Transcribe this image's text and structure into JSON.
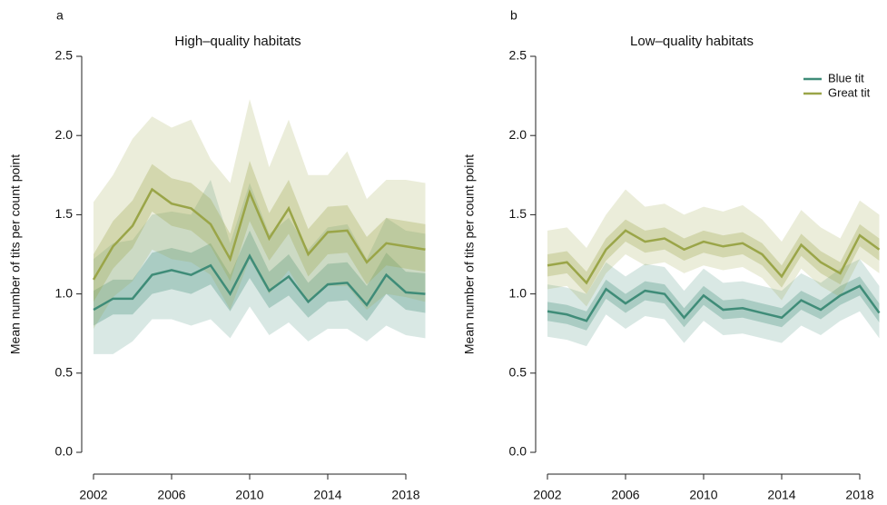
{
  "chart_data": [
    {
      "type": "line",
      "panel_label": "a",
      "title": "High–quality habitats",
      "ylabel": "Mean number of tits per count point",
      "x": [
        2002,
        2003,
        2004,
        2005,
        2006,
        2007,
        2008,
        2009,
        2010,
        2011,
        2012,
        2013,
        2014,
        2015,
        2016,
        2017,
        2018,
        2019
      ],
      "xlim": [
        2002,
        2019
      ],
      "xticks": [
        2002,
        2006,
        2010,
        2014,
        2018
      ],
      "ylim": [
        0,
        2.5
      ],
      "yticks": [
        {
          "value": 0,
          "label": "0.0"
        },
        0.5,
        {
          "value": 1,
          "label": "1.0"
        },
        1.5,
        {
          "value": 2,
          "label": "2.0"
        },
        2.5
      ],
      "legend": false,
      "series": [
        {
          "name": "Blue tit",
          "color": "#3f8c78",
          "values": [
            0.9,
            0.97,
            0.97,
            1.12,
            1.15,
            1.12,
            1.18,
            1.0,
            1.24,
            1.02,
            1.11,
            0.95,
            1.06,
            1.07,
            0.93,
            1.12,
            1.01,
            1.0
          ],
          "inner_low": [
            0.8,
            0.87,
            0.87,
            1.0,
            1.03,
            1.0,
            1.06,
            0.89,
            1.1,
            0.91,
            0.99,
            0.85,
            0.95,
            0.96,
            0.83,
            1.0,
            0.9,
            0.88
          ],
          "inner_high": [
            1.02,
            1.09,
            1.09,
            1.26,
            1.29,
            1.26,
            1.32,
            1.12,
            1.4,
            1.14,
            1.25,
            1.07,
            1.19,
            1.2,
            1.05,
            1.26,
            1.14,
            1.13
          ],
          "outer_low": [
            0.62,
            0.62,
            0.7,
            0.84,
            0.84,
            0.8,
            0.84,
            0.72,
            0.92,
            0.74,
            0.82,
            0.7,
            0.78,
            0.78,
            0.7,
            0.8,
            0.74,
            0.72
          ],
          "outer_high": [
            1.22,
            1.32,
            1.34,
            1.5,
            1.52,
            1.5,
            1.72,
            1.32,
            1.7,
            1.38,
            1.48,
            1.28,
            1.42,
            1.44,
            1.22,
            1.48,
            1.4,
            1.38
          ]
        },
        {
          "name": "Great tit",
          "color": "#9aa548",
          "values": [
            1.09,
            1.3,
            1.43,
            1.66,
            1.57,
            1.54,
            1.44,
            1.22,
            1.64,
            1.35,
            1.54,
            1.25,
            1.39,
            1.4,
            1.2,
            1.32,
            1.3,
            1.28
          ],
          "inner_low": [
            0.95,
            1.16,
            1.29,
            1.52,
            1.43,
            1.4,
            1.3,
            1.08,
            1.46,
            1.21,
            1.38,
            1.11,
            1.25,
            1.26,
            1.06,
            1.18,
            1.16,
            1.14
          ],
          "inner_high": [
            1.25,
            1.46,
            1.59,
            1.82,
            1.73,
            1.7,
            1.6,
            1.38,
            1.84,
            1.51,
            1.72,
            1.41,
            1.55,
            1.56,
            1.36,
            1.48,
            1.46,
            1.44
          ],
          "outer_low": [
            0.78,
            0.98,
            1.08,
            1.28,
            1.22,
            1.2,
            1.12,
            0.9,
            1.22,
            1.0,
            1.15,
            0.95,
            1.05,
            1.05,
            0.9,
            1.0,
            0.98,
            0.95
          ],
          "outer_high": [
            1.58,
            1.75,
            1.98,
            2.12,
            2.05,
            2.1,
            1.85,
            1.7,
            2.23,
            1.8,
            2.1,
            1.75,
            1.75,
            1.9,
            1.6,
            1.72,
            1.72,
            1.7
          ]
        }
      ]
    },
    {
      "type": "line",
      "panel_label": "b",
      "title": "Low–quality habitats",
      "ylabel": "Mean number of tits per count point",
      "x": [
        2002,
        2003,
        2004,
        2005,
        2006,
        2007,
        2008,
        2009,
        2010,
        2011,
        2012,
        2013,
        2014,
        2015,
        2016,
        2017,
        2018,
        2019
      ],
      "xlim": [
        2002,
        2019
      ],
      "xticks": [
        2002,
        2006,
        2010,
        2014,
        2018
      ],
      "ylim": [
        0,
        2.5
      ],
      "yticks": [
        {
          "value": 0,
          "label": "0.0"
        },
        0.5,
        {
          "value": 1,
          "label": "1.0"
        },
        1.5,
        {
          "value": 2,
          "label": "2.0"
        },
        2.5
      ],
      "legend": "top-right",
      "series": [
        {
          "name": "Blue tit",
          "color": "#3f8c78",
          "values": [
            0.89,
            0.87,
            0.83,
            1.03,
            0.94,
            1.02,
            1.0,
            0.85,
            0.99,
            0.9,
            0.91,
            0.88,
            0.85,
            0.96,
            0.9,
            0.99,
            1.05,
            0.88
          ],
          "inner_low": [
            0.83,
            0.81,
            0.77,
            0.97,
            0.88,
            0.96,
            0.94,
            0.79,
            0.93,
            0.84,
            0.85,
            0.82,
            0.79,
            0.9,
            0.84,
            0.93,
            0.99,
            0.82
          ],
          "inner_high": [
            0.95,
            0.93,
            0.89,
            1.09,
            1.0,
            1.08,
            1.06,
            0.91,
            1.05,
            0.96,
            0.97,
            0.94,
            0.91,
            1.02,
            0.96,
            1.05,
            1.11,
            0.94
          ],
          "outer_low": [
            0.73,
            0.71,
            0.67,
            0.87,
            0.78,
            0.86,
            0.84,
            0.69,
            0.83,
            0.74,
            0.75,
            0.72,
            0.69,
            0.8,
            0.74,
            0.83,
            0.89,
            0.72
          ],
          "outer_high": [
            1.06,
            1.04,
            1.0,
            1.2,
            1.11,
            1.19,
            1.17,
            1.02,
            1.16,
            1.07,
            1.08,
            1.05,
            1.02,
            1.13,
            1.07,
            1.16,
            1.22,
            1.05
          ]
        },
        {
          "name": "Great tit",
          "color": "#9aa548",
          "values": [
            1.18,
            1.2,
            1.07,
            1.28,
            1.4,
            1.33,
            1.35,
            1.28,
            1.33,
            1.3,
            1.32,
            1.25,
            1.11,
            1.31,
            1.2,
            1.13,
            1.37,
            1.28
          ],
          "inner_low": [
            1.11,
            1.13,
            1.0,
            1.21,
            1.33,
            1.26,
            1.28,
            1.21,
            1.26,
            1.23,
            1.25,
            1.18,
            1.04,
            1.24,
            1.13,
            1.06,
            1.3,
            1.21
          ],
          "inner_high": [
            1.25,
            1.27,
            1.14,
            1.35,
            1.47,
            1.4,
            1.42,
            1.35,
            1.4,
            1.37,
            1.39,
            1.32,
            1.18,
            1.38,
            1.27,
            1.2,
            1.44,
            1.35
          ],
          "outer_low": [
            1.03,
            1.05,
            0.92,
            1.13,
            1.25,
            1.18,
            1.2,
            1.13,
            1.18,
            1.15,
            1.17,
            1.1,
            0.96,
            1.16,
            1.05,
            0.98,
            1.22,
            1.13
          ],
          "outer_high": [
            1.4,
            1.42,
            1.29,
            1.5,
            1.66,
            1.55,
            1.57,
            1.5,
            1.55,
            1.52,
            1.56,
            1.47,
            1.33,
            1.53,
            1.42,
            1.35,
            1.59,
            1.5
          ]
        }
      ]
    }
  ]
}
